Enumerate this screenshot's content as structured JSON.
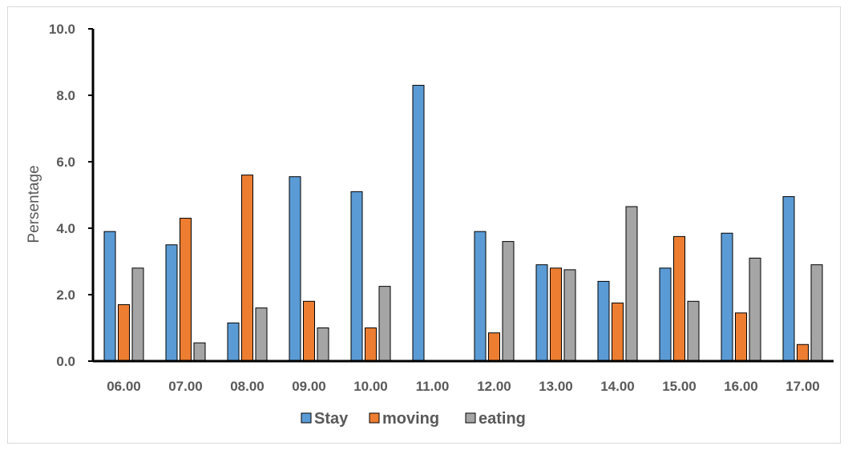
{
  "chart_data": {
    "type": "bar",
    "title": "",
    "xlabel": "",
    "ylabel": "Persentage",
    "ylim": [
      0,
      10
    ],
    "yticks": [
      "0.0",
      "2.0",
      "4.0",
      "6.0",
      "8.0",
      "10.0"
    ],
    "grid": false,
    "legend_position": "bottom",
    "categories": [
      "06.00",
      "07.00",
      "08.00",
      "09.00",
      "10.00",
      "11.00",
      "12.00",
      "13.00",
      "14.00",
      "15.00",
      "16.00",
      "17.00"
    ],
    "series": [
      {
        "name": "Stay",
        "color": "#5b9bd5",
        "values": [
          3.9,
          3.5,
          1.15,
          5.55,
          5.1,
          8.3,
          3.9,
          2.9,
          2.4,
          2.8,
          3.85,
          4.95
        ]
      },
      {
        "name": "moving",
        "color": "#ed7d31",
        "values": [
          1.7,
          4.3,
          5.6,
          1.8,
          1.0,
          0,
          0.85,
          2.8,
          1.75,
          3.75,
          1.45,
          0.5
        ]
      },
      {
        "name": "eating",
        "color": "#a5a5a5",
        "values": [
          2.8,
          0.55,
          1.6,
          1.0,
          2.25,
          0,
          3.6,
          2.75,
          4.65,
          1.8,
          3.1,
          2.9
        ]
      }
    ]
  }
}
